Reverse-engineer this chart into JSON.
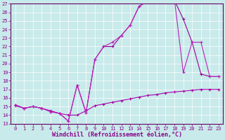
{
  "xlabel": "Windchill (Refroidissement éolien,°C)",
  "xlim": [
    -0.5,
    23.5
  ],
  "ylim": [
    13,
    27
  ],
  "yticks": [
    13,
    14,
    15,
    16,
    17,
    18,
    19,
    20,
    21,
    22,
    23,
    24,
    25,
    26,
    27
  ],
  "xticks": [
    0,
    1,
    2,
    3,
    4,
    5,
    6,
    7,
    8,
    9,
    10,
    11,
    12,
    13,
    14,
    15,
    16,
    17,
    18,
    19,
    20,
    21,
    22,
    23
  ],
  "bg_color": "#c8eaea",
  "line_color1": "#aa00aa",
  "line_color2": "#990099",
  "line_color3": "#bb22bb",
  "line1_x": [
    0,
    1,
    2,
    3,
    4,
    5,
    6,
    7,
    8,
    9,
    10,
    11,
    12,
    13,
    14,
    15,
    16,
    17,
    18,
    19,
    20,
    21,
    22,
    23
  ],
  "line1_y": [
    15.1,
    14.8,
    15.0,
    14.8,
    14.5,
    14.2,
    14.0,
    14.0,
    14.5,
    15.1,
    15.3,
    15.5,
    15.7,
    15.9,
    16.1,
    16.3,
    16.4,
    16.6,
    16.7,
    16.8,
    16.9,
    17.0,
    17.0,
    17.0
  ],
  "line2_x": [
    0,
    1,
    2,
    3,
    4,
    5,
    6,
    7,
    8,
    9,
    10,
    11,
    12,
    13,
    14,
    15,
    16,
    17,
    18,
    19,
    20,
    21,
    22,
    23
  ],
  "line2_y": [
    15.2,
    14.8,
    15.0,
    14.8,
    14.4,
    14.2,
    13.3,
    17.5,
    14.3,
    20.5,
    22.0,
    22.0,
    23.3,
    24.5,
    26.7,
    27.3,
    27.3,
    27.4,
    27.4,
    25.2,
    22.5,
    18.8,
    18.5,
    18.5
  ],
  "line3_x": [
    0,
    1,
    2,
    3,
    4,
    5,
    6,
    7,
    8,
    9,
    10,
    11,
    12,
    13,
    14,
    15,
    16,
    17,
    18,
    19,
    20,
    21,
    22,
    23
  ],
  "line3_y": [
    15.2,
    14.8,
    15.0,
    14.8,
    14.4,
    14.2,
    13.3,
    17.5,
    14.3,
    20.5,
    22.0,
    22.5,
    23.3,
    24.5,
    26.7,
    27.3,
    27.3,
    27.5,
    27.5,
    19.0,
    22.5,
    22.5,
    18.5,
    18.5
  ],
  "marker": "+",
  "markersize": 3,
  "linewidth": 0.8,
  "xlabel_fontsize": 6,
  "tick_fontsize": 5,
  "tick_color": "#880088",
  "spine_color": "#660066",
  "grid_color": "#ffffff"
}
